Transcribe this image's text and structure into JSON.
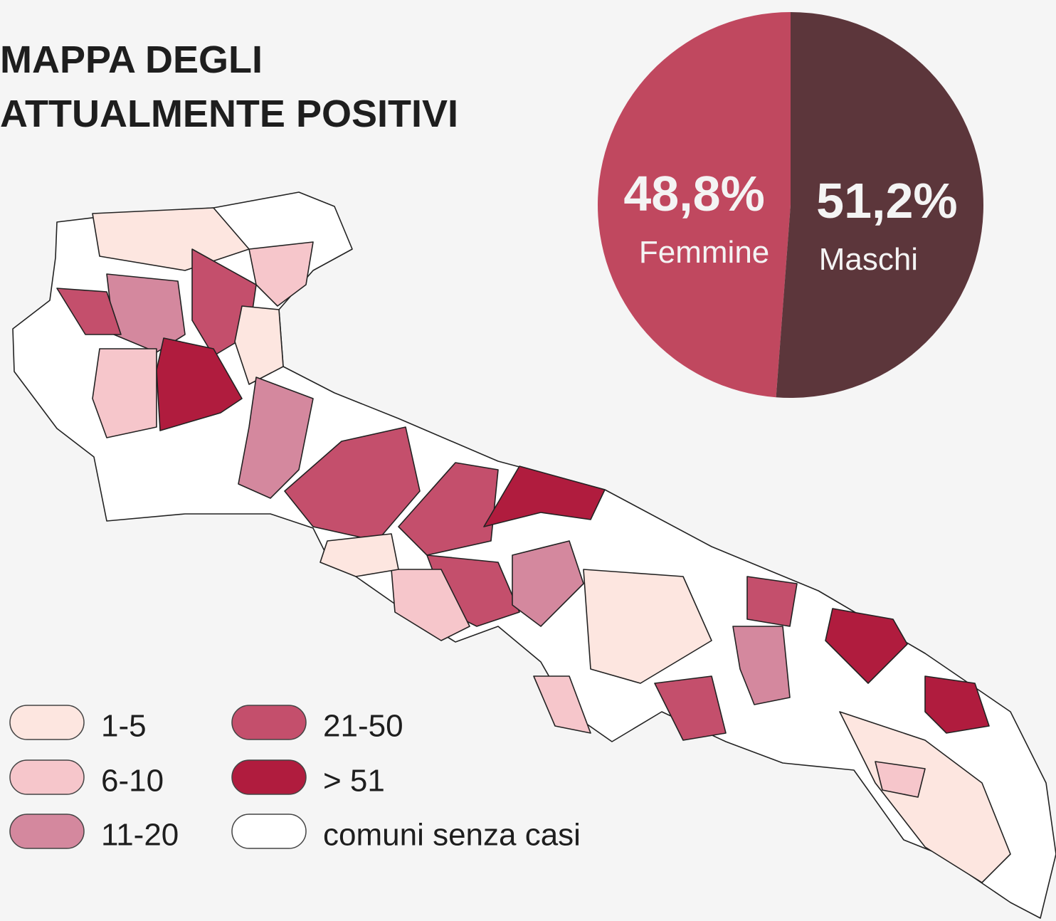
{
  "title": [
    "MAPPA DEGLI",
    "ATTUALMENTE POSITIVI"
  ],
  "chart_data": {
    "type": "pie",
    "categories": [
      "Femmine",
      "Maschi"
    ],
    "values": [
      48.8,
      51.2
    ],
    "value_labels": [
      "48,8%",
      "51,2%"
    ],
    "colors": [
      "#c0485f",
      "#5c363b"
    ]
  },
  "map_legend": [
    {
      "label": "1-5",
      "color": "#fde6e0"
    },
    {
      "label": "6-10",
      "color": "#f6c6cb"
    },
    {
      "label": "11-20",
      "color": "#d4889e"
    },
    {
      "label": "21-50",
      "color": "#c44f6c"
    },
    {
      "label": "> 51",
      "color": "#b01c3e"
    },
    {
      "label": "comuni senza casi",
      "color": "#ffffff"
    }
  ]
}
